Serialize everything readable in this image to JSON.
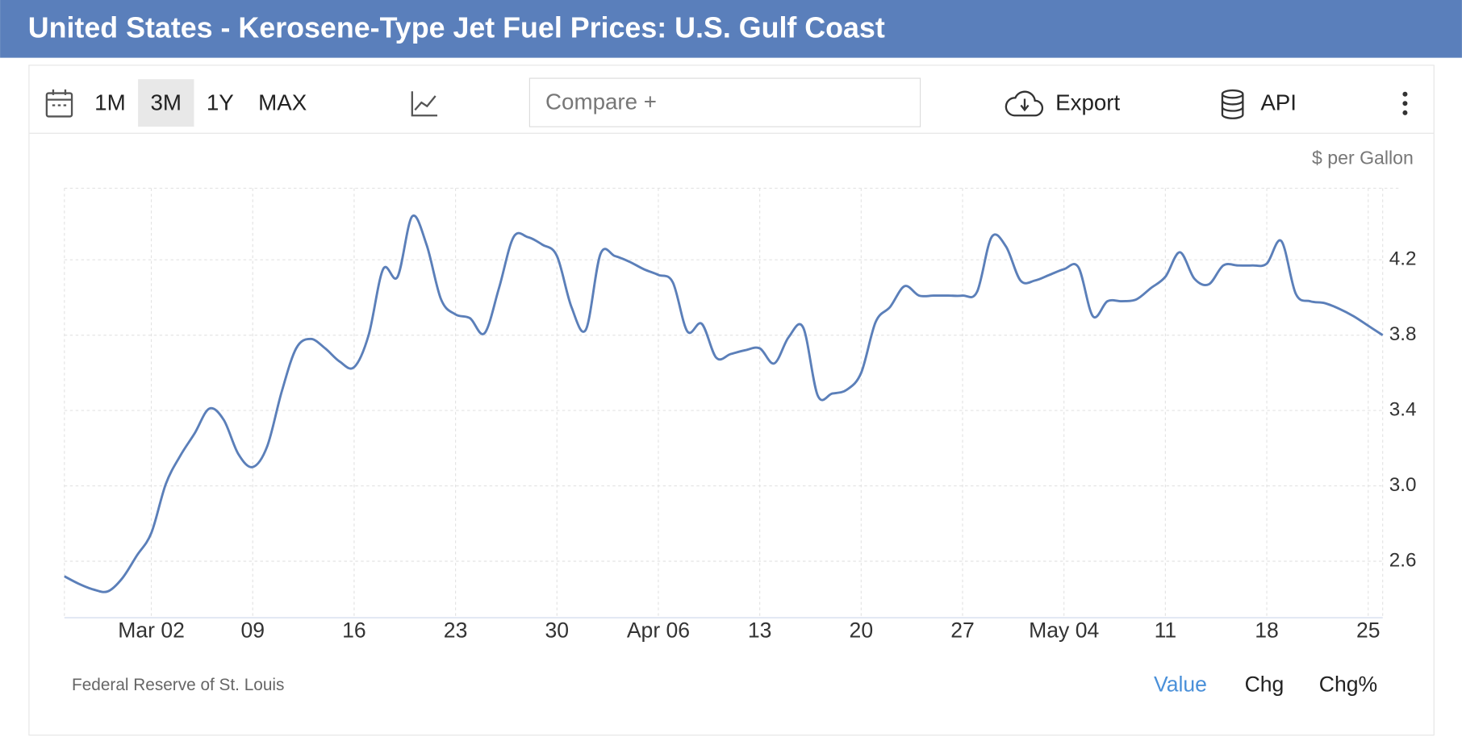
{
  "chart_data": {
    "type": "line",
    "title": "United States - Kerosene-Type Jet Fuel Prices: U.S. Gulf Coast",
    "unit": "$ per Gallon",
    "source": "Federal Reserve of St. Louis",
    "categories": [
      null,
      null,
      null,
      null,
      null,
      null,
      "Mar 02",
      null,
      null,
      null,
      null,
      null,
      null,
      "09",
      null,
      null,
      null,
      null,
      null,
      null,
      "16",
      null,
      null,
      null,
      null,
      null,
      null,
      "23",
      null,
      null,
      null,
      null,
      null,
      null,
      "30",
      null,
      null,
      null,
      null,
      null,
      null,
      "Apr 06",
      null,
      null,
      null,
      null,
      null,
      null,
      "13",
      null,
      null,
      null,
      null,
      null,
      null,
      "20",
      null,
      null,
      null,
      null,
      null,
      null,
      "27",
      null,
      null,
      null,
      null,
      null,
      null,
      "May 04",
      null,
      null,
      null,
      null,
      null,
      null,
      "11",
      null,
      null,
      null,
      null,
      null,
      null,
      "18",
      null,
      null,
      null,
      null,
      null,
      null,
      "25",
      null
    ],
    "series": [
      {
        "color": "#5b7fb9",
        "values": [
          2.52,
          2.48,
          2.45,
          2.44,
          2.51,
          2.63,
          2.75,
          3.01,
          3.16,
          3.28,
          3.41,
          3.35,
          3.17,
          3.1,
          3.21,
          3.5,
          3.73,
          3.78,
          3.73,
          3.66,
          3.63,
          3.8,
          4.15,
          4.11,
          4.43,
          4.28,
          3.99,
          3.91,
          3.89,
          3.81,
          4.05,
          4.32,
          4.32,
          4.28,
          4.22,
          3.95,
          3.83,
          4.23,
          4.22,
          4.19,
          4.15,
          4.12,
          4.08,
          3.82,
          3.86,
          3.68,
          3.7,
          3.72,
          3.73,
          3.65,
          3.79,
          3.84,
          3.48,
          3.49,
          3.51,
          3.6,
          3.87,
          3.95,
          4.06,
          4.01,
          4.01,
          4.01,
          4.01,
          4.03,
          4.32,
          4.27,
          4.09,
          4.09,
          4.12,
          4.15,
          4.16,
          3.9,
          3.98,
          3.98,
          3.99,
          4.05,
          4.11,
          4.24,
          4.1,
          4.07,
          4.17,
          4.17,
          4.17,
          4.18,
          4.3,
          4.02,
          3.98,
          3.97,
          3.94,
          3.9,
          3.85,
          3.8
        ]
      }
    ],
    "ylim": [
      2.3,
      4.58
    ],
    "yticks": [
      2.6,
      {
        "value": 3,
        "label": "3.0"
      },
      3.4,
      3.8,
      4.2
    ],
    "grid": true
  },
  "toolbar": {
    "ranges": [
      "1M",
      "3M",
      "1Y",
      "MAX"
    ],
    "selected": 1,
    "compare": "Compare +",
    "export": "Export",
    "api": "API"
  },
  "tabs": {
    "items": [
      "Value",
      "Chg",
      "Chg%"
    ],
    "active": 0
  }
}
